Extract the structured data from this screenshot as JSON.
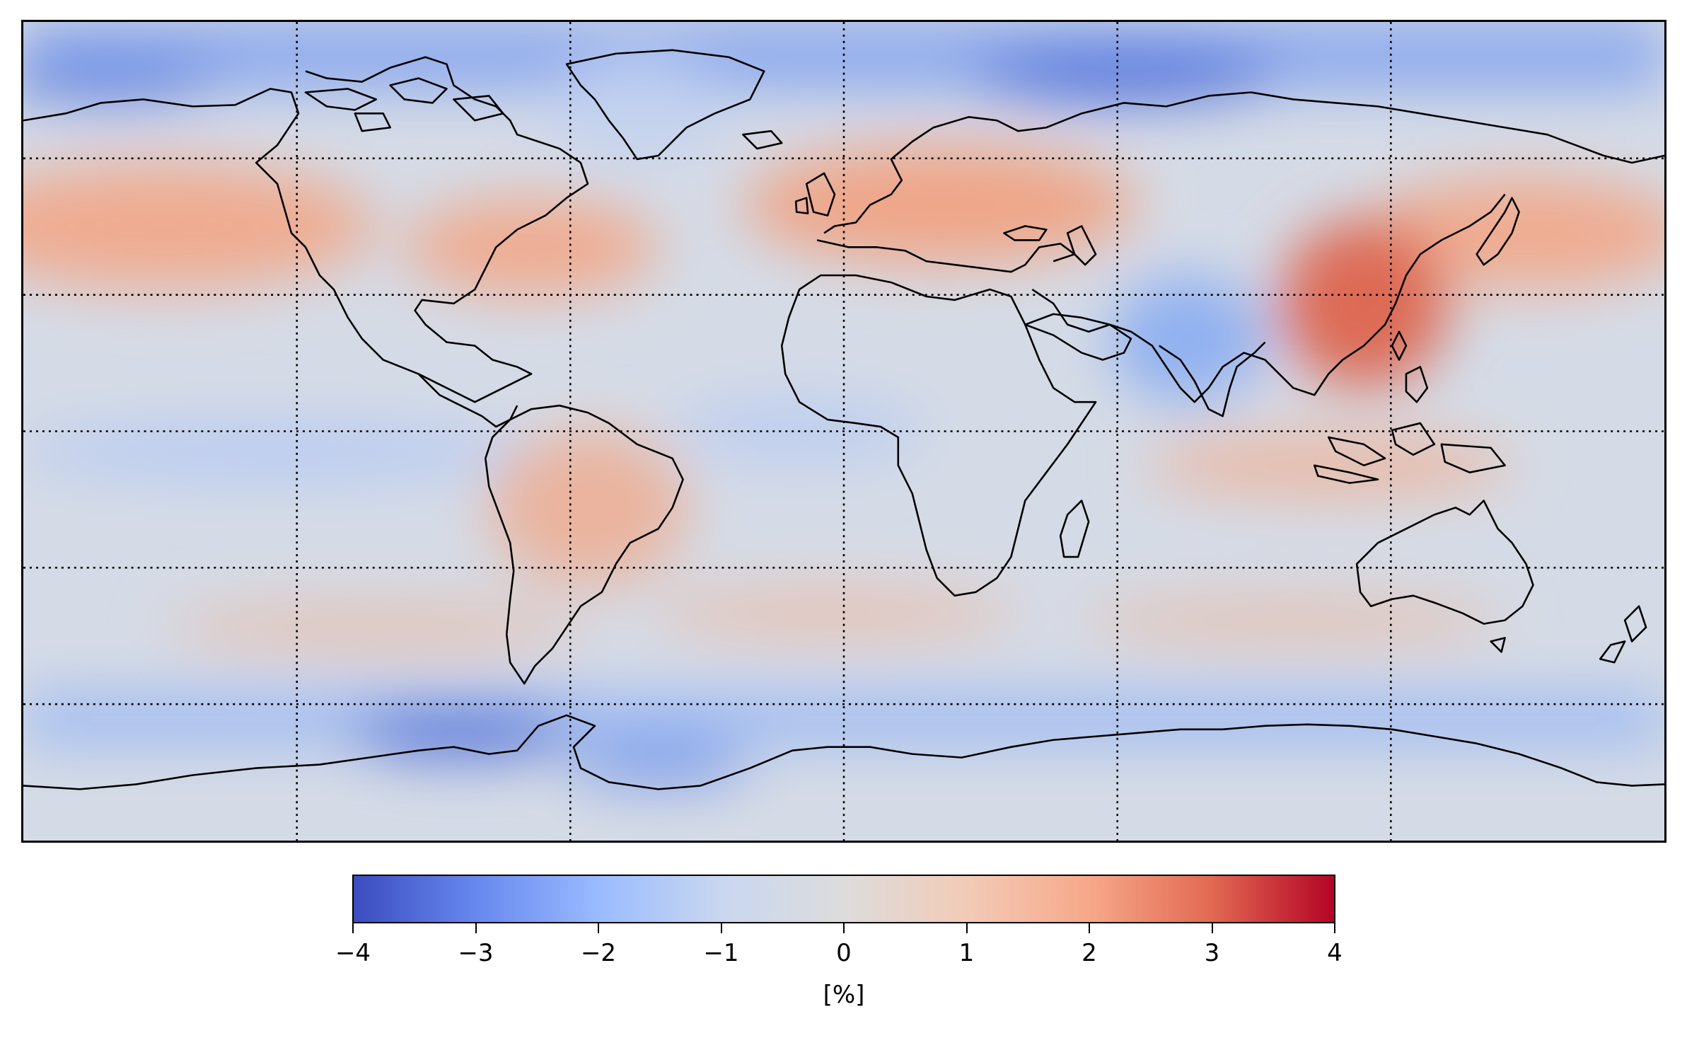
{
  "map": {
    "projection": "PlateCarree",
    "colormap": "coolwarm",
    "grid_style": "dotted",
    "grid_color": "#000000",
    "coastline_color": "#000000",
    "ocean_background": "#d5dbe6"
  },
  "colorbar": {
    "min": -4,
    "max": 4,
    "ticks": [
      "−4",
      "−3",
      "−2",
      "−1",
      "0",
      "1",
      "2",
      "3",
      "4"
    ],
    "unit_label": "[%]",
    "colors": [
      "#3b4cc0",
      "#6788ee",
      "#9abbff",
      "#c9d7f0",
      "#dddcdc",
      "#f2cbb7",
      "#f7a889",
      "#e26952",
      "#b40426"
    ]
  },
  "anomaly_regions": [
    {
      "name": "arctic-ocean-negative",
      "value": -2.3
    },
    {
      "name": "north-pacific-positive",
      "value": 1.4
    },
    {
      "name": "north-atlantic-positive",
      "value": 1.2
    },
    {
      "name": "europe-positive",
      "value": 1.6
    },
    {
      "name": "east-asia-positive",
      "value": 3.0
    },
    {
      "name": "india-negative",
      "value": -1.6
    },
    {
      "name": "south-america-positive",
      "value": 0.9
    },
    {
      "name": "southern-ocean-negative",
      "value": -2.4
    },
    {
      "name": "antarctica-neutral",
      "value": -0.3
    },
    {
      "name": "tropical-pacific-negative",
      "value": -0.8
    }
  ]
}
